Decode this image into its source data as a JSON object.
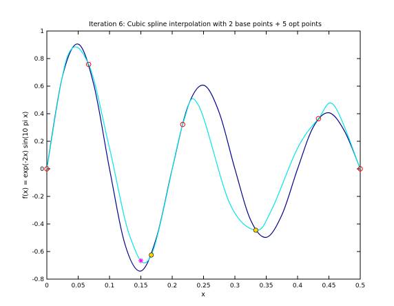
{
  "chart_data": {
    "type": "line",
    "title": "Iteration 6: Cubic spline interpolation with 2 base points + 5 opt points",
    "xlabel": "x",
    "ylabel": "f(x) = exp(-2x) sin(10 pi x)",
    "xlim": [
      0,
      0.5
    ],
    "ylim": [
      -0.8,
      1
    ],
    "xticks": [
      0,
      0.05,
      0.1,
      0.15,
      0.2,
      0.25,
      0.3,
      0.35,
      0.4,
      0.45,
      0.5
    ],
    "xtick_labels": [
      "0",
      "0.05",
      "0.1",
      "0.15",
      "0.2",
      "0.25",
      "0.3",
      "0.35",
      "0.4",
      "0.45",
      "0.5"
    ],
    "yticks": [
      -0.8,
      -0.6,
      -0.4,
      -0.2,
      0,
      0.2,
      0.4,
      0.6,
      0.8,
      1
    ],
    "ytick_labels": [
      "-0.8",
      "-0.6",
      "-0.4",
      "-0.2",
      "0",
      "0.2",
      "0.4",
      "0.6",
      "0.8",
      "1"
    ],
    "grid": false,
    "colors": {
      "true_function": "#00008f",
      "spline": "#00e5e5",
      "nodes": "#ff0000",
      "new_point_fill": "#ffd400",
      "star": "#ff00ff"
    },
    "series": [
      {
        "style": "line",
        "color": "#00008f",
        "x": [
          0,
          0.025,
          0.05,
          0.075,
          0.1,
          0.125,
          0.15,
          0.175,
          0.2,
          0.225,
          0.25,
          0.275,
          0.3,
          0.325,
          0.35,
          0.375,
          0.4,
          0.425,
          0.45,
          0.475,
          0.5
        ],
        "y": [
          0,
          0.673,
          0.905,
          0.609,
          0,
          -0.552,
          -0.741,
          -0.498,
          0,
          0.452,
          0.607,
          0.408,
          0,
          -0.37,
          -0.497,
          -0.334,
          0,
          0.303,
          0.407,
          0.273,
          0
        ]
      },
      {
        "style": "line",
        "color": "#00e5e5",
        "x": [
          0,
          0.0333,
          0.0667,
          0.1,
          0.1333,
          0.1667,
          0.2167,
          0.2417,
          0.2917,
          0.3333,
          0.3583,
          0.4,
          0.4333,
          0.4583,
          0.5
        ],
        "y": [
          0,
          0.82,
          0.758,
          0.15,
          -0.5,
          -0.625,
          0.322,
          0.463,
          -0.25,
          -0.445,
          -0.3,
          0.15,
          0.364,
          0.46,
          0
        ]
      },
      {
        "style": "markers",
        "marker": "circle",
        "color": "#ff0000",
        "x": [
          0,
          0.0667,
          0.2167,
          0.4333,
          0.5
        ],
        "y": [
          0,
          0.758,
          0.322,
          0.364,
          0
        ]
      },
      {
        "style": "markers",
        "marker": "filled-circle",
        "color": "#ffd400",
        "x": [
          0.1667,
          0.3333
        ],
        "y": [
          -0.625,
          -0.445
        ]
      },
      {
        "style": "markers",
        "marker": "star",
        "color": "#ff00ff",
        "x": [
          0.15
        ],
        "y": [
          -0.666
        ]
      }
    ]
  }
}
